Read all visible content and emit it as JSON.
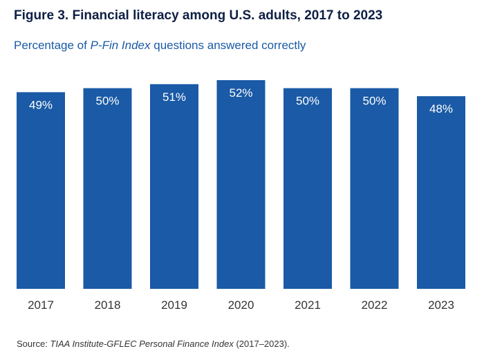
{
  "title": "Figure 3. Financial literacy among U.S. adults, 2017 to 2023",
  "subtitle": {
    "prefix": "Percentage  of ",
    "emphasis": "P-Fin Index",
    "suffix": " questions answered correctly"
  },
  "source": {
    "prefix": "Source: ",
    "emphasis": "TIAA Institute-GFLEC Personal Finance Index",
    "suffix": " (2017–2023)."
  },
  "chart_data": {
    "type": "bar",
    "title": "Figure 3. Financial literacy among U.S. adults, 2017 to 2023",
    "ylabel": "",
    "xlabel": "",
    "categories": [
      "2017",
      "2018",
      "2019",
      "2020",
      "2021",
      "2022",
      "2023"
    ],
    "values": [
      49,
      50,
      51,
      52,
      50,
      50,
      48
    ],
    "value_labels": [
      "49%",
      "50%",
      "51%",
      "52%",
      "50%",
      "50%",
      "48%"
    ],
    "ylim": [
      0,
      52
    ],
    "grid": false,
    "legend": "none",
    "bar_color": "#1a5aa6",
    "label_color": "#ffffff",
    "tick_label_color": "#333333"
  }
}
